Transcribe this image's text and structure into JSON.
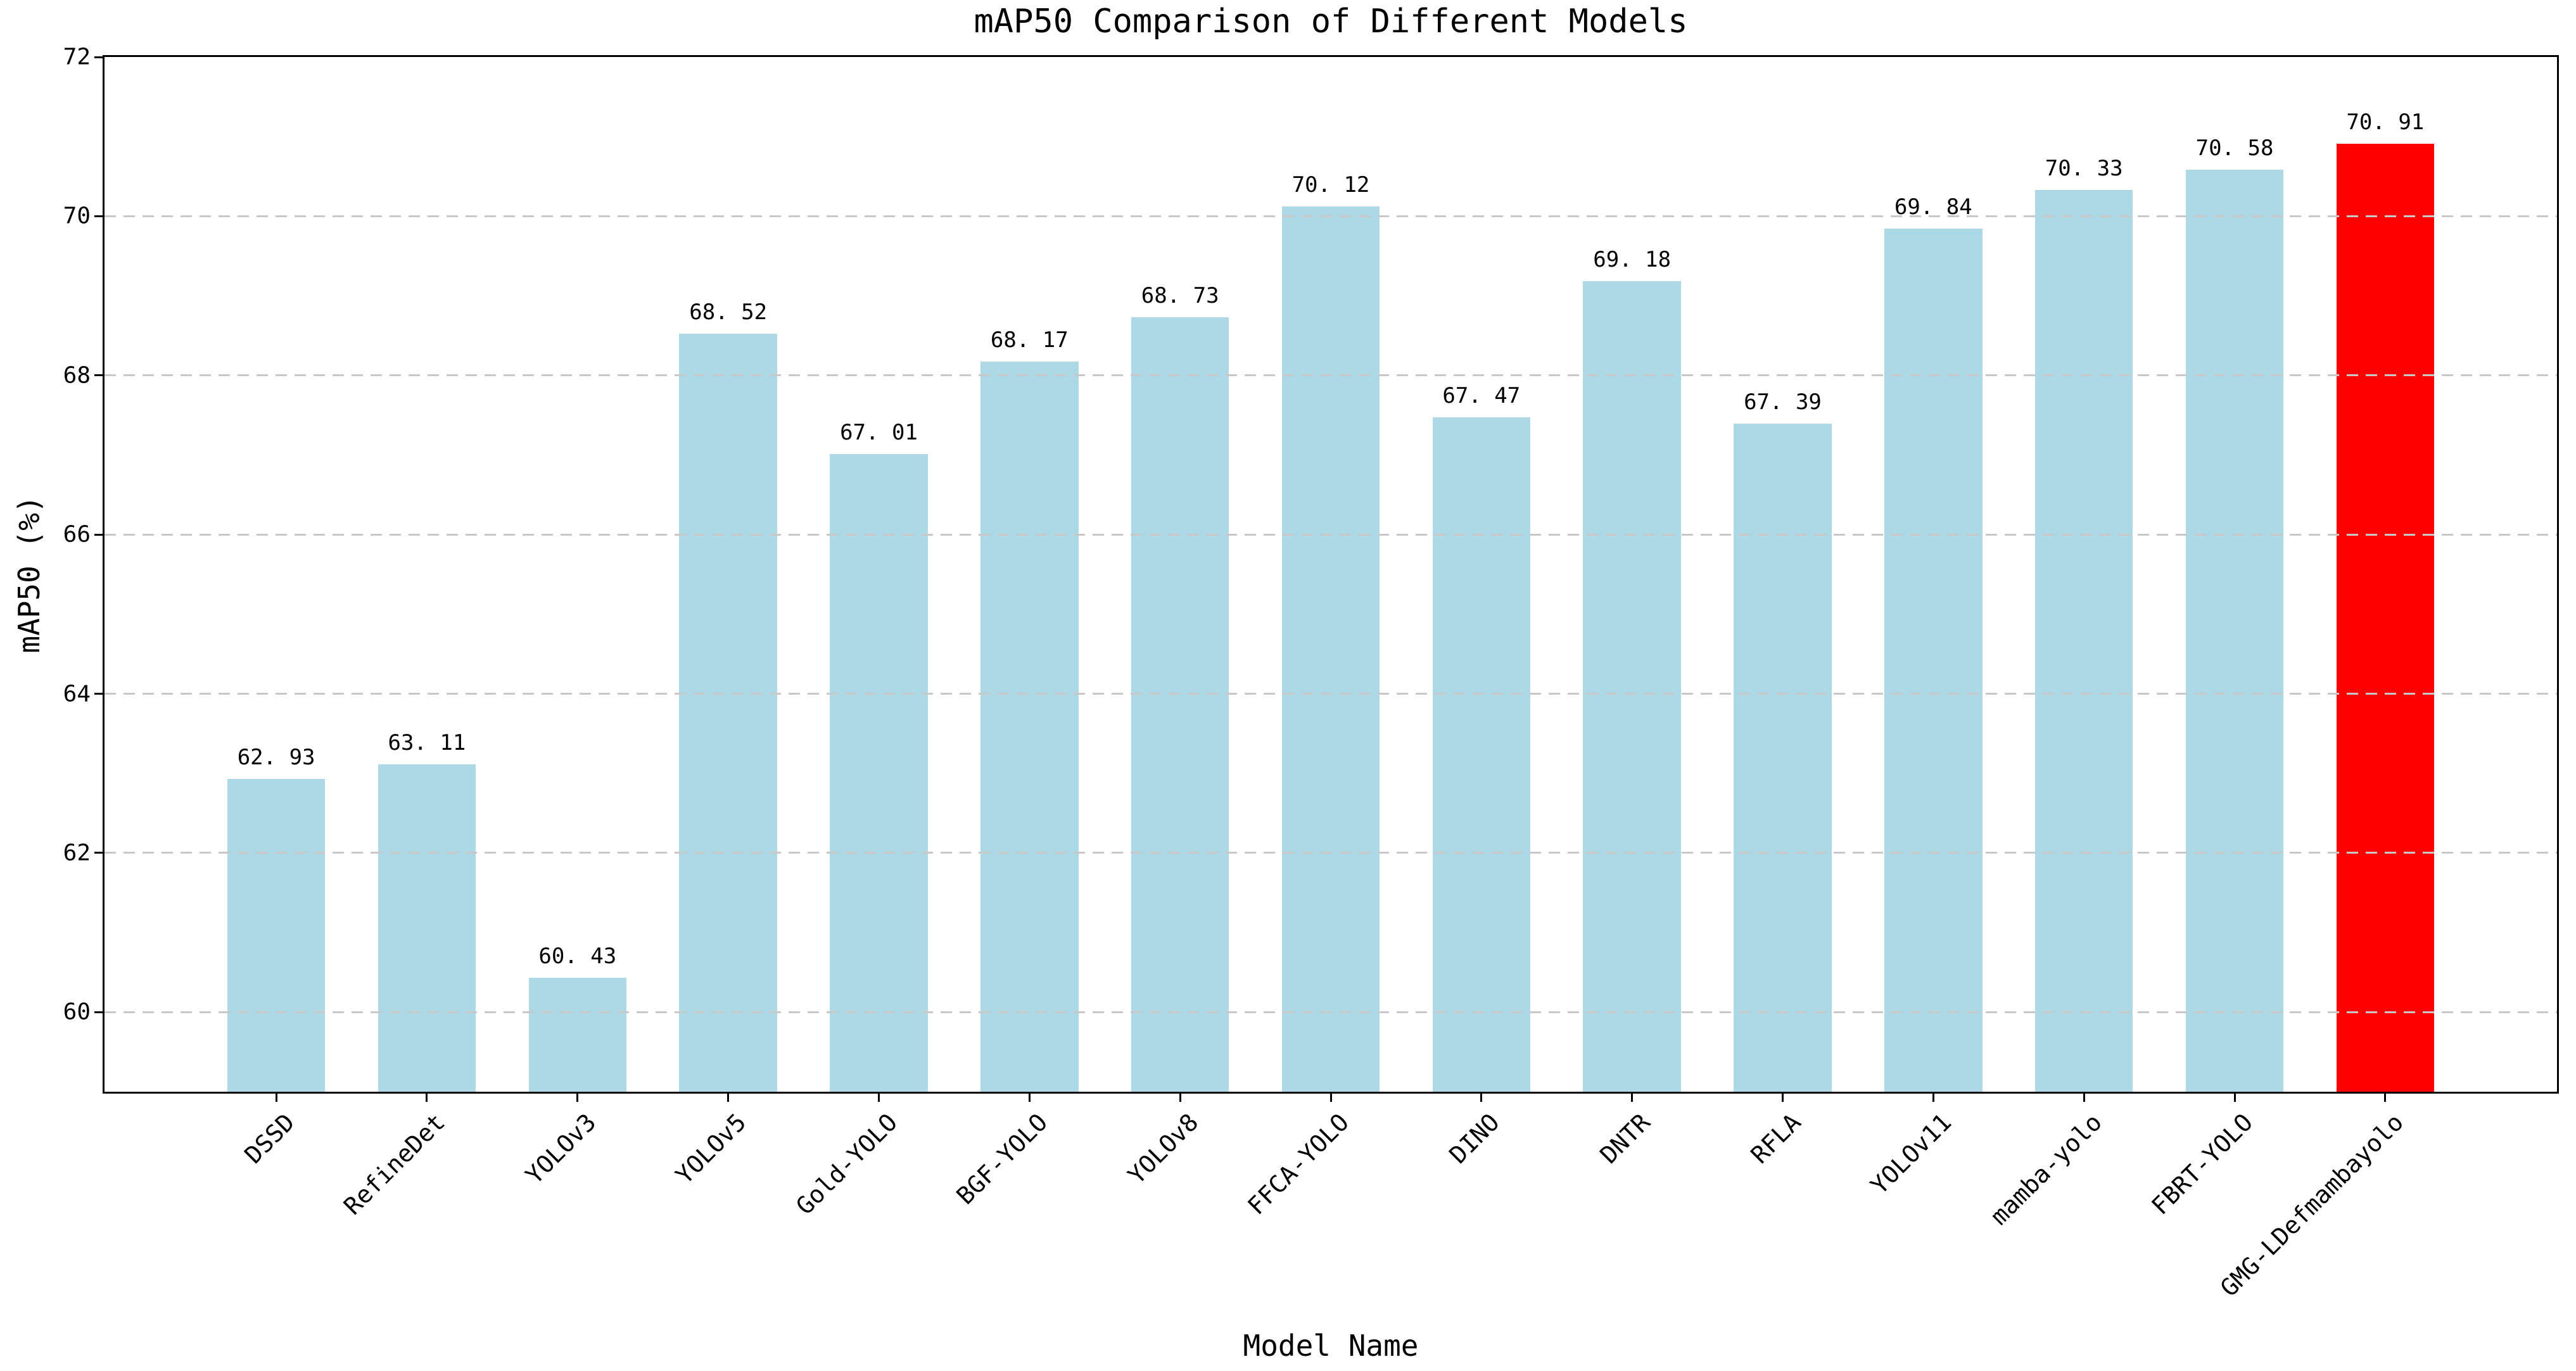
{
  "chart_data": {
    "type": "bar",
    "title": "mAP50 Comparison of Different Models",
    "xlabel": "Model Name",
    "ylabel": "mAP50 (%)",
    "categories": [
      "DSSD",
      "RefineDet",
      "YOLOv3",
      "YOLOv5",
      "Gold-YOLO",
      "BGF-YOLO",
      "YOLOv8",
      "FFCA-YOLO",
      "DINO",
      "DNTR",
      "RFLA",
      "YOLOv11",
      "mamba-yolo",
      "FBRT-YOLO",
      "GMG-LDefmambayolo"
    ],
    "values": [
      62.93,
      63.11,
      60.43,
      68.52,
      67.01,
      68.17,
      68.73,
      70.12,
      67.47,
      69.18,
      67.39,
      69.84,
      70.33,
      70.58,
      70.91
    ],
    "value_labels": [
      "62. 93",
      "63. 11",
      "60. 43",
      "68. 52",
      "67. 01",
      "68. 17",
      "68. 73",
      "70. 12",
      "67. 47",
      "69. 18",
      "67. 39",
      "69. 84",
      "70. 33",
      "70. 58",
      "70. 91"
    ],
    "highlight_index": 14,
    "bar_color": "#ADD8E6",
    "highlight_color": "#FF0000",
    "grid_color": "#C8C8C8",
    "axis_color": "#000000",
    "ylim": [
      59,
      72
    ],
    "y_ticks": [
      60,
      62,
      64,
      66,
      68,
      70,
      72
    ],
    "grid": "horizontal-dashed",
    "legend": "none",
    "x_tick_rotation_deg": 45
  }
}
